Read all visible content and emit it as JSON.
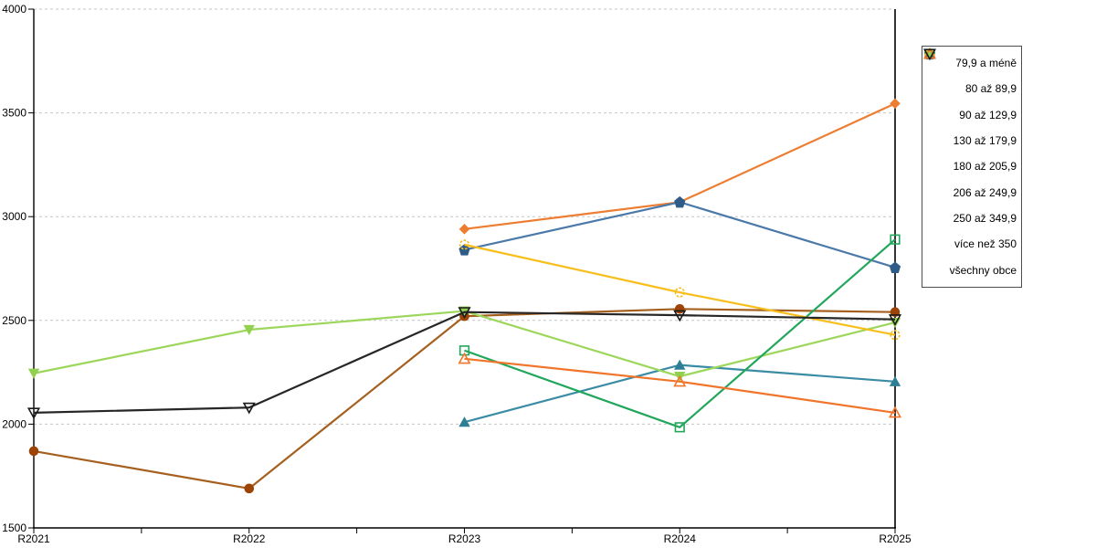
{
  "chart_data": {
    "type": "line",
    "title": "",
    "xlabel": "",
    "ylabel": "",
    "categories": [
      "R2021",
      "R2022",
      "R2023",
      "R2024",
      "R2025"
    ],
    "yticks": [
      1500,
      2000,
      2500,
      3000,
      3500,
      4000
    ],
    "ylim": [
      1500,
      4000
    ],
    "grid": "horizontal-dashed",
    "legend_position": "right",
    "series": [
      {
        "name": "79,9 a méně",
        "marker": "diamond-filled",
        "color": "#ED7D31",
        "line_color": "#ED7D31",
        "values": [
          null,
          null,
          2940,
          3070,
          3545
        ]
      },
      {
        "name": "80 až 89,9",
        "marker": "circle-filled",
        "color": "#9C4306",
        "line_color": "#A5601F",
        "values": [
          1870,
          1690,
          2520,
          2555,
          2540
        ]
      },
      {
        "name": "90 až 129,9",
        "marker": "triangle-up-filled",
        "color": "#2E7E95",
        "line_color": "#3A8CA5",
        "values": [
          null,
          null,
          2010,
          2285,
          2205
        ]
      },
      {
        "name": "130 až 179,9",
        "marker": "pentagon-filled",
        "color": "#2E5B87",
        "line_color": "#4B79A9",
        "values": [
          null,
          null,
          2840,
          3070,
          2755
        ]
      },
      {
        "name": "180 až 205,9",
        "marker": "triangle-down-filled",
        "color": "#92D050",
        "line_color": "#9CD65B",
        "values": [
          2245,
          2455,
          2545,
          2230,
          2490
        ]
      },
      {
        "name": "206 až 249,9",
        "marker": "square-open",
        "color": "#21A65C",
        "line_color": "#21A65C",
        "values": [
          null,
          null,
          2355,
          1985,
          2890
        ]
      },
      {
        "name": "250 až 349,9",
        "marker": "circle-open",
        "color": "#F2BC1B",
        "line_color": "#F7BE1C",
        "values": [
          null,
          null,
          2865,
          2635,
          2430
        ]
      },
      {
        "name": "více než 350",
        "marker": "triangle-up-open",
        "color": "#F0752B",
        "line_color": "#F0752B",
        "values": [
          null,
          null,
          2315,
          2205,
          2055
        ]
      },
      {
        "name": "všechny obce",
        "marker": "triangle-down-open",
        "color": "#1A1A1A",
        "line_color": "#262626",
        "values": [
          2055,
          2080,
          2540,
          2525,
          2505
        ]
      }
    ]
  },
  "style": {
    "grid_color": "#c6c6c6",
    "axis_color": "#000000",
    "background": "#ffffff"
  }
}
